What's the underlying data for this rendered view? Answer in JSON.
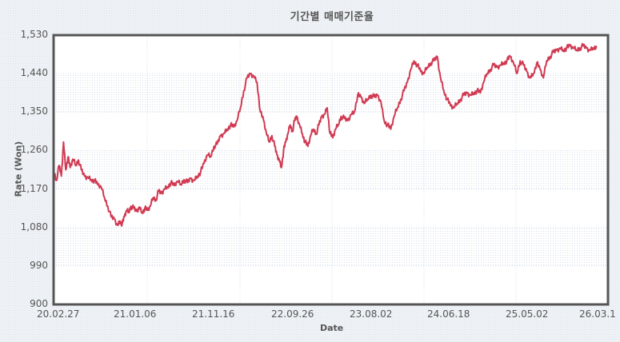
{
  "chart_data": {
    "type": "line",
    "title": "기간별 매매기준율",
    "xlabel": "Date",
    "ylabel": "Rate (Won)",
    "ylim": [
      900,
      1530
    ],
    "yticks": [
      "900",
      "990",
      "1,080",
      "1,170",
      "1,260",
      "1,350",
      "1,440",
      "1,530"
    ],
    "xticks": [
      "20.02.27",
      "21.01.06",
      "21.11.16",
      "22.09.26",
      "23.08.02",
      "24.06.18",
      "25.05.02",
      "26.03.1"
    ],
    "grid": true,
    "legend": "none",
    "line_color": "#d03a52",
    "series": [
      {
        "name": "Rate",
        "x_frac": [
          0,
          0.005,
          0.01,
          0.014,
          0.018,
          0.022,
          0.026,
          0.03,
          0.035,
          0.04,
          0.045,
          0.05,
          0.056,
          0.062,
          0.068,
          0.074,
          0.08,
          0.086,
          0.092,
          0.098,
          0.104,
          0.11,
          0.116,
          0.12,
          0.124,
          0.128,
          0.132,
          0.136,
          0.14,
          0.145,
          0.15,
          0.155,
          0.16,
          0.165,
          0.17,
          0.175,
          0.18,
          0.185,
          0.19,
          0.195,
          0.2,
          0.206,
          0.212,
          0.218,
          0.224,
          0.23,
          0.236,
          0.242,
          0.248,
          0.254,
          0.26,
          0.266,
          0.272,
          0.278,
          0.284,
          0.29,
          0.296,
          0.302,
          0.308,
          0.314,
          0.32,
          0.326,
          0.332,
          0.338,
          0.344,
          0.35,
          0.356,
          0.362,
          0.368,
          0.374,
          0.38,
          0.385,
          0.39,
          0.395,
          0.4,
          0.404,
          0.408,
          0.412,
          0.416,
          0.42,
          0.424,
          0.428,
          0.432,
          0.436,
          0.44,
          0.445,
          0.45,
          0.455,
          0.46,
          0.465,
          0.47,
          0.475,
          0.48,
          0.485,
          0.49,
          0.495,
          0.5,
          0.505,
          0.51,
          0.515,
          0.52,
          0.526,
          0.532,
          0.538,
          0.544,
          0.55,
          0.556,
          0.562,
          0.568,
          0.574,
          0.58,
          0.586,
          0.592,
          0.598,
          0.604,
          0.61,
          0.616,
          0.622,
          0.628,
          0.634,
          0.64,
          0.646,
          0.652,
          0.658,
          0.664,
          0.67,
          0.676,
          0.682,
          0.688,
          0.694,
          0.7,
          0.706,
          0.712,
          0.718,
          0.724,
          0.73,
          0.736,
          0.742,
          0.748,
          0.754,
          0.76,
          0.766,
          0.772,
          0.778,
          0.784,
          0.79,
          0.796,
          0.802,
          0.808,
          0.814,
          0.82,
          0.826,
          0.832,
          0.838,
          0.844,
          0.85,
          0.856,
          0.862,
          0.868,
          0.874,
          0.88,
          0.886,
          0.892,
          0.898,
          0.904,
          0.91,
          0.916,
          0.922,
          0.928,
          0.934,
          0.94,
          0.946,
          0.952,
          0.958,
          0.964,
          0.97,
          0.976,
          0.982,
          0.988,
          0.994,
          1.0
        ],
        "values": [
          1215,
          1190,
          1225,
          1200,
          1280,
          1215,
          1245,
          1220,
          1240,
          1225,
          1238,
          1215,
          1200,
          1198,
          1192,
          1190,
          1180,
          1175,
          1150,
          1130,
          1105,
          1100,
          1085,
          1095,
          1088,
          1105,
          1120,
          1115,
          1130,
          1125,
          1118,
          1128,
          1115,
          1125,
          1120,
          1130,
          1150,
          1145,
          1165,
          1160,
          1170,
          1175,
          1185,
          1178,
          1188,
          1180,
          1192,
          1185,
          1195,
          1190,
          1200,
          1210,
          1230,
          1250,
          1245,
          1270,
          1275,
          1295,
          1300,
          1310,
          1320,
          1315,
          1330,
          1360,
          1400,
          1430,
          1440,
          1435,
          1420,
          1350,
          1330,
          1300,
          1280,
          1295,
          1270,
          1250,
          1240,
          1220,
          1260,
          1280,
          1300,
          1320,
          1305,
          1330,
          1340,
          1320,
          1300,
          1280,
          1270,
          1295,
          1310,
          1300,
          1320,
          1340,
          1345,
          1360,
          1300,
          1290,
          1310,
          1320,
          1340,
          1335,
          1330,
          1345,
          1350,
          1390,
          1385,
          1370,
          1380,
          1390,
          1385,
          1390,
          1375,
          1330,
          1320,
          1310,
          1340,
          1360,
          1380,
          1400,
          1420,
          1450,
          1470,
          1460,
          1445,
          1440,
          1455,
          1465,
          1470,
          1480,
          1430,
          1400,
          1380,
          1365,
          1360,
          1370,
          1380,
          1390,
          1395,
          1390,
          1395,
          1400,
          1395,
          1420,
          1440,
          1450,
          1460,
          1455,
          1460,
          1465,
          1470,
          1480,
          1465,
          1440,
          1470,
          1460,
          1445,
          1430,
          1440,
          1465,
          1450,
          1430,
          1470,
          1480,
          1490,
          1495,
          1500,
          1495,
          1500,
          1505,
          1500,
          1495,
          1500,
          1505,
          1500,
          1495,
          1500,
          1505
        ]
      }
    ]
  }
}
